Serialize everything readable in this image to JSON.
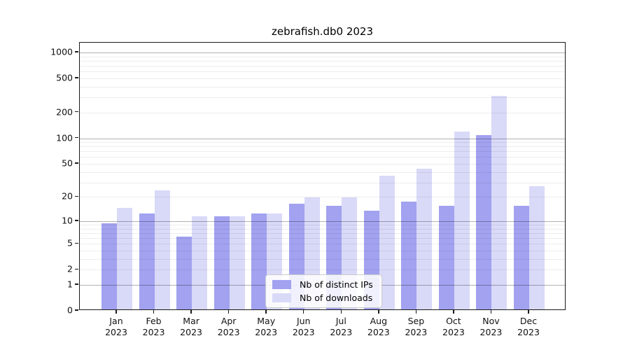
{
  "title": "zebrafish.db0 2023",
  "chart_data": {
    "type": "bar",
    "title": "zebrafish.db0 2023",
    "categories": [
      "Jan 2023",
      "Feb 2023",
      "Mar 2023",
      "Apr 2023",
      "May 2023",
      "Jun 2023",
      "Jul 2023",
      "Aug 2023",
      "Sep 2023",
      "Oct 2023",
      "Nov 2023",
      "Dec 2023"
    ],
    "x_tick_months": [
      "Jan",
      "Feb",
      "Mar",
      "Apr",
      "May",
      "Jun",
      "Jul",
      "Aug",
      "Sep",
      "Oct",
      "Nov",
      "Dec"
    ],
    "x_tick_year": "2023",
    "series": [
      {
        "name": "Nb of distinct IPs",
        "color": "#a2a2f0",
        "values": [
          9,
          12,
          6,
          11,
          12,
          16,
          15,
          13,
          17,
          15,
          105,
          15
        ]
      },
      {
        "name": "Nb of downloads",
        "color": "#d9d9f8",
        "values": [
          14,
          23,
          11,
          11,
          12,
          19,
          19,
          35,
          42,
          115,
          300,
          26
        ]
      }
    ],
    "yscale": "log1p",
    "ylim": [
      0,
      1300
    ],
    "yticks": [
      0,
      1,
      2,
      5,
      10,
      20,
      50,
      100,
      200,
      500,
      1000
    ],
    "major_gridlines": [
      1,
      10,
      100,
      1000
    ],
    "minor_gridlines": [
      2,
      3,
      4,
      5,
      6,
      7,
      8,
      9,
      20,
      30,
      40,
      50,
      60,
      70,
      80,
      90,
      200,
      300,
      400,
      500,
      600,
      700,
      800,
      900
    ],
    "grid": true,
    "legend_position": "lower center",
    "xlabel": "",
    "ylabel": ""
  },
  "colors": {
    "major_grid": "rgba(0,0,0,0.30)",
    "minor_grid": "rgba(0,0,0,0.07)",
    "spine": "#1a1a1a",
    "background": "#ffffff"
  }
}
